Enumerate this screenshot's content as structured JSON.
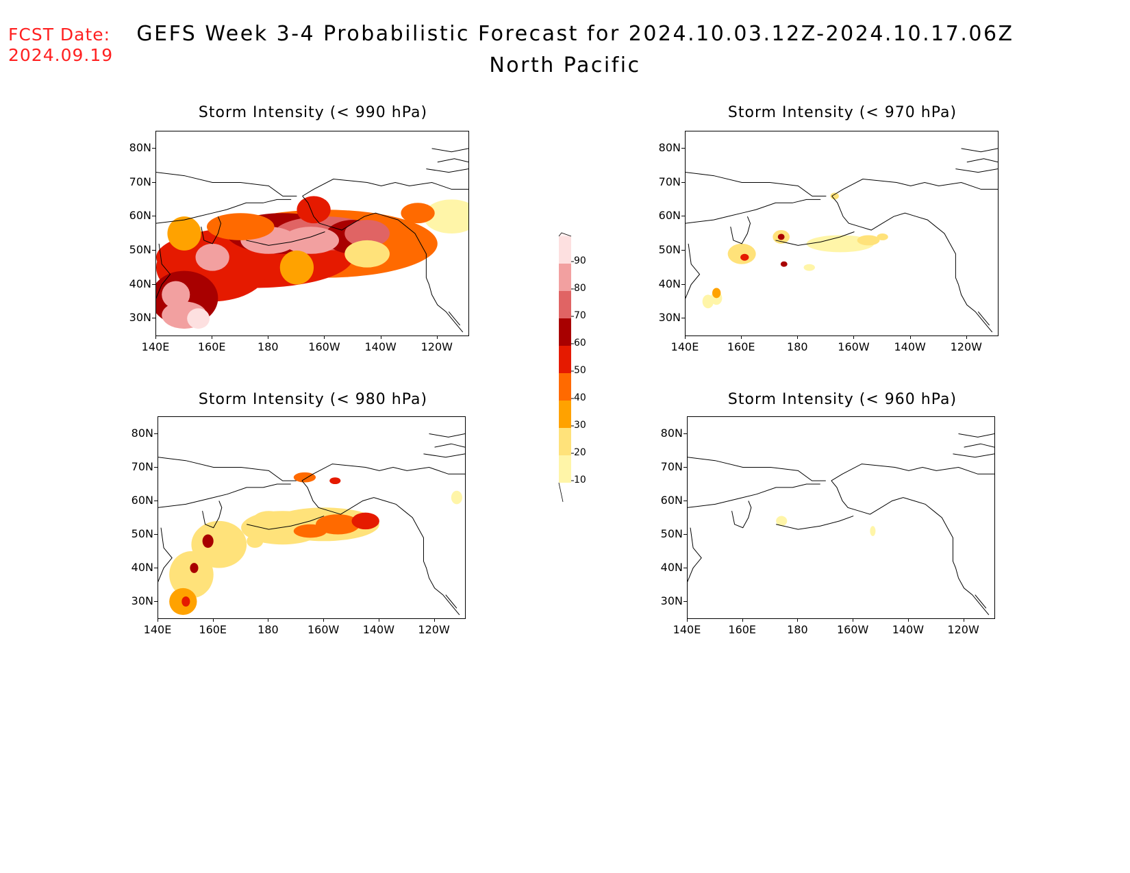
{
  "header": {
    "fcst_label": "FCST Date:",
    "fcst_date": "2024.09.19",
    "title": "GEFS Week 3-4 Probabilistic Forecast for 2024.10.03.12Z-2024.10.17.06Z",
    "subtitle": "North Pacific"
  },
  "axes": {
    "lat_ticks": [
      "80N",
      "70N",
      "60N",
      "50N",
      "40N",
      "30N"
    ],
    "lon_ticks": [
      "140E",
      "160E",
      "180",
      "160W",
      "140W",
      "120W"
    ]
  },
  "panels": [
    {
      "title": "Storm Intensity (< 990 hPa)"
    },
    {
      "title": "Storm Intensity (< 970 hPa)"
    },
    {
      "title": "Storm Intensity (< 980 hPa)"
    },
    {
      "title": "Storm Intensity (< 960 hPa)"
    }
  ],
  "colorbar": {
    "levels": [
      "10",
      "20",
      "30",
      "40",
      "50",
      "60",
      "70",
      "80",
      "90"
    ],
    "colors": [
      "#fff5a8",
      "#ffe27a",
      "#ffa200",
      "#ff6a00",
      "#e51a00",
      "#a80000",
      "#e06464",
      "#f2a0a0",
      "#fde0e0"
    ]
  }
}
